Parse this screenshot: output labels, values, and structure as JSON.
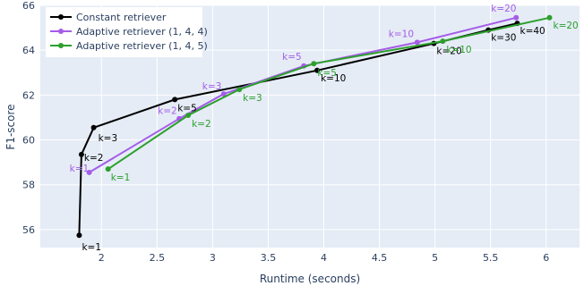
{
  "chart_data": {
    "type": "line",
    "xlabel": "Runtime (seconds)",
    "ylabel": "F1-score",
    "xlim": [
      1.45,
      6.3
    ],
    "ylim": [
      55.2,
      66.0
    ],
    "xticks": [
      2,
      2.5,
      3,
      3.5,
      4,
      4.5,
      5,
      5.5,
      6
    ],
    "yticks": [
      56,
      58,
      60,
      62,
      64,
      66
    ],
    "grid": true,
    "legend_position": "top-left",
    "series": [
      {
        "name": "Constant retriever",
        "color": "#000000",
        "points": [
          {
            "x": 1.8,
            "y": 55.75,
            "label": "k=1"
          },
          {
            "x": 1.82,
            "y": 59.35,
            "label": "k=2"
          },
          {
            "x": 1.93,
            "y": 60.55,
            "label": "k=3"
          },
          {
            "x": 2.66,
            "y": 61.8,
            "label": "k=5"
          },
          {
            "x": 3.94,
            "y": 63.1,
            "label": "k=10"
          },
          {
            "x": 4.99,
            "y": 64.3,
            "label": "k=20"
          },
          {
            "x": 5.48,
            "y": 64.9,
            "label": "k=30"
          },
          {
            "x": 5.74,
            "y": 65.2,
            "label": "k=40"
          }
        ]
      },
      {
        "name": "Adaptive retriever (1, 4, 4)",
        "color": "#a55ce8",
        "points": [
          {
            "x": 1.89,
            "y": 58.55,
            "label": "k=1"
          },
          {
            "x": 2.7,
            "y": 60.95,
            "label": "k=2"
          },
          {
            "x": 3.1,
            "y": 62.05,
            "label": "k=3"
          },
          {
            "x": 3.82,
            "y": 63.3,
            "label": "k=5"
          },
          {
            "x": 4.84,
            "y": 64.35,
            "label": "k=10"
          },
          {
            "x": 5.73,
            "y": 65.45,
            "label": "k=20"
          }
        ]
      },
      {
        "name": "Adaptive retriever (1, 4, 5)",
        "color": "#2ca02c",
        "points": [
          {
            "x": 2.06,
            "y": 58.7,
            "label": "k=1"
          },
          {
            "x": 2.78,
            "y": 61.1,
            "label": "k=2"
          },
          {
            "x": 3.24,
            "y": 62.25,
            "label": "k=3"
          },
          {
            "x": 3.91,
            "y": 63.4,
            "label": "k=5"
          },
          {
            "x": 5.07,
            "y": 64.4,
            "label": "k=10"
          },
          {
            "x": 6.03,
            "y": 65.45,
            "label": "k=20"
          }
        ]
      }
    ]
  }
}
